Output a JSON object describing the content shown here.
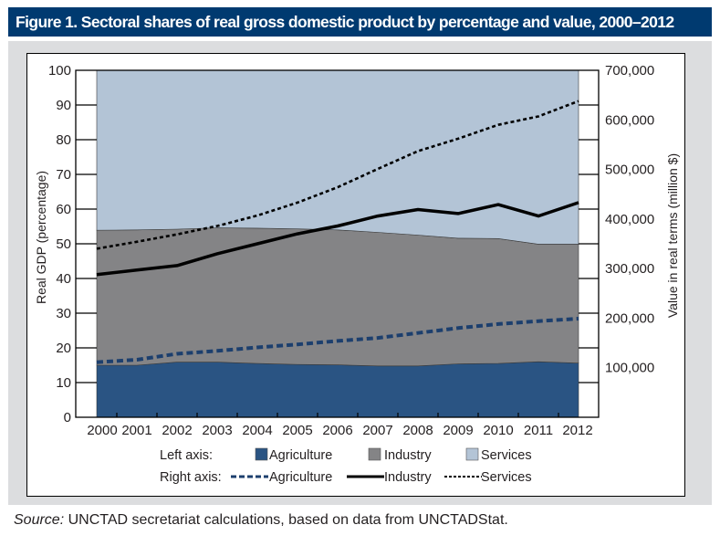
{
  "title": "Figure 1. Sectoral shares of real gross domestic product by percentage and value, 2000–2012",
  "source": {
    "label": "Source:",
    "text": " UNCTAD secretariat calculations, based on data from UNCTADStat."
  },
  "colors": {
    "title_bg": "#003a70",
    "agriculture": "#2a5483",
    "industry": "#848486",
    "services": "#b3c4d6",
    "agriculture_line": "#1c3f6e",
    "industry_line": "#000000",
    "services_line": "#000000"
  },
  "chart_data": {
    "type": "area",
    "title": "Sectoral shares of real gross domestic product by percentage and value, 2000–2012",
    "categories": [
      "2000",
      "2001",
      "2002",
      "2003",
      "2004",
      "2005",
      "2006",
      "2007",
      "2008",
      "2009",
      "2010",
      "2011",
      "2012"
    ],
    "xlabel": "",
    "left_axis": {
      "label": "Real GDP (percentage)",
      "range": [
        0,
        100
      ],
      "ticks": [
        0,
        10,
        20,
        30,
        40,
        50,
        60,
        70,
        80,
        90,
        100
      ],
      "tick_labels": [
        "0",
        "10",
        "20",
        "30",
        "40",
        "50",
        "60",
        "70",
        "80",
        "90",
        "100"
      ],
      "stacked_area_series": [
        {
          "name": "Agriculture",
          "values": [
            15.0,
            15.0,
            15.9,
            15.9,
            15.5,
            15.2,
            15.1,
            14.8,
            14.8,
            15.4,
            15.5,
            16.0,
            15.6
          ]
        },
        {
          "name": "Industry",
          "values": [
            38.9,
            39.0,
            38.3,
            38.7,
            39.0,
            39.1,
            38.9,
            38.5,
            37.7,
            36.2,
            36.0,
            33.9,
            34.3
          ]
        },
        {
          "name": "Services",
          "values": [
            46.1,
            46.0,
            45.8,
            45.4,
            45.5,
            45.7,
            46.0,
            46.7,
            47.5,
            48.4,
            48.5,
            50.1,
            50.1
          ]
        }
      ]
    },
    "right_axis": {
      "label": "Value in real terms (million $)",
      "range": [
        0,
        700000
      ],
      "tick_labels": [
        {
          "value": 100000,
          "label": "100,000"
        },
        {
          "value": 200000,
          "label": "200,000"
        },
        {
          "value": 300000,
          "label": "300,000"
        },
        {
          "value": 400000,
          "label": "400,000"
        },
        {
          "value": 500000,
          "label": "500,000"
        },
        {
          "value": 600000,
          "label": "600,000"
        },
        {
          "value": 700000,
          "label": "700,000"
        }
      ],
      "line_series": [
        {
          "name": "Agriculture",
          "style": "dashed",
          "values": [
            111000,
            116000,
            128000,
            134000,
            141000,
            147000,
            154000,
            160000,
            170000,
            180000,
            188000,
            194000,
            199000
          ]
        },
        {
          "name": "Industry",
          "style": "solid",
          "values": [
            288000,
            297000,
            306000,
            330000,
            350000,
            370000,
            386000,
            406000,
            419000,
            411000,
            429000,
            406000,
            433000
          ]
        },
        {
          "name": "Services",
          "style": "dotted",
          "values": [
            340000,
            354000,
            369000,
            386000,
            407000,
            433000,
            464000,
            501000,
            537000,
            562000,
            590000,
            607000,
            638000
          ]
        }
      ]
    },
    "grid": false,
    "legend": {
      "placement": "bottom",
      "left_axis_label": "Left axis:",
      "right_axis_label": "Right axis:",
      "left_items": [
        "Agriculture",
        "Industry",
        "Services"
      ],
      "right_items": [
        "Agriculture",
        "Industry",
        "Services"
      ]
    }
  }
}
